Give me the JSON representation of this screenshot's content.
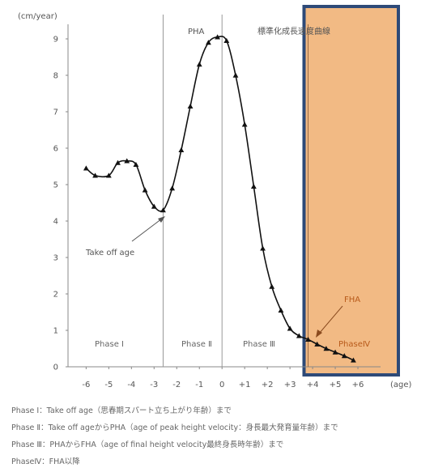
{
  "chart_data": {
    "type": "line",
    "title": "標準化成長速度曲線",
    "ylabel": "(cm/year)",
    "xlabel": "(age)",
    "ylim": [
      0,
      9.4
    ],
    "xlim": [
      -6.8,
      7.0
    ],
    "x_ticks": [
      -6,
      -5,
      -4,
      -3,
      -2,
      -1,
      0,
      1,
      2,
      3,
      4,
      5,
      6
    ],
    "x_tick_labels": [
      "-6",
      "-5",
      "-4",
      "-3",
      "-2",
      "-1",
      "0",
      "+1",
      "+2",
      "+3",
      "+4",
      "+5",
      "+6"
    ],
    "y_ticks": [
      0,
      1,
      2,
      3,
      4,
      5,
      6,
      7,
      8,
      9
    ],
    "y_tick_labels": [
      "0",
      "1",
      "2",
      "3",
      "4",
      "5",
      "6",
      "7",
      "8",
      "9"
    ],
    "grid": false,
    "series": [
      {
        "points": [
          [
            -6.0,
            5.45
          ],
          [
            -5.6,
            5.25
          ],
          [
            -5.0,
            5.25
          ],
          [
            -4.6,
            5.6
          ],
          [
            -4.2,
            5.65
          ],
          [
            -3.8,
            5.55
          ],
          [
            -3.4,
            4.85
          ],
          [
            -3.0,
            4.4
          ],
          [
            -2.6,
            4.3
          ],
          [
            -2.2,
            4.9
          ],
          [
            -1.8,
            5.95
          ],
          [
            -1.4,
            7.15
          ],
          [
            -1.0,
            8.3
          ],
          [
            -0.6,
            8.9
          ],
          [
            -0.2,
            9.05
          ],
          [
            0.2,
            8.95
          ],
          [
            0.6,
            8.0
          ],
          [
            1.0,
            6.65
          ],
          [
            1.4,
            4.95
          ],
          [
            1.8,
            3.25
          ],
          [
            2.2,
            2.2
          ],
          [
            2.6,
            1.55
          ],
          [
            3.0,
            1.05
          ],
          [
            3.4,
            0.85
          ],
          [
            3.8,
            0.75
          ],
          [
            4.2,
            0.62
          ],
          [
            4.6,
            0.5
          ],
          [
            5.0,
            0.4
          ],
          [
            5.4,
            0.3
          ],
          [
            5.8,
            0.18
          ]
        ]
      }
    ],
    "vlines": [
      -2.6,
      0,
      3.8
    ],
    "phase_labels": [
      "Phase Ⅰ",
      "Phase Ⅱ",
      "Phase Ⅲ",
      "PhaseⅣ"
    ],
    "region_labels": [
      "PHA"
    ],
    "annotations": [
      "Take off age",
      "FHA"
    ],
    "legend_lines": [
      "Phase Ⅰ：Take off age（思春期スパート立ち上がり年齢）まで",
      "Phase Ⅱ：Take off ageからPHA（age of peak height velocity：身長最大発育量年齢）まで",
      "Phase Ⅲ：PHAからFHA（age of final height velocity最終身長時年齢）まで",
      "PhaseⅣ：FHA以降"
    ],
    "colors": {
      "highlight_fill": "#f2ba84",
      "highlight_border": "#2e4a78",
      "curve": "#111111",
      "axis": "#888888"
    }
  }
}
